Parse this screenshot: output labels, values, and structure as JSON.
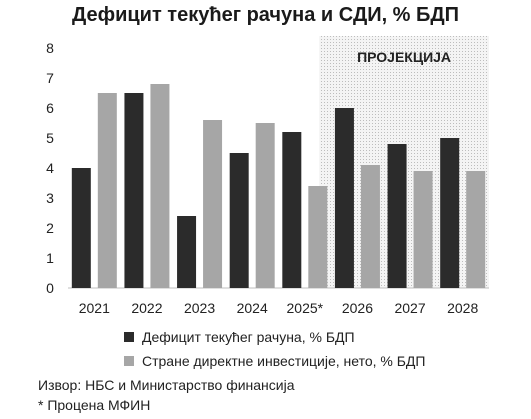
{
  "chart_data": {
    "type": "bar",
    "title": "Дефицит текућег рачуна и СДИ, % БДП",
    "categories": [
      "2021",
      "2022",
      "2023",
      "2024",
      "2025*",
      "2026",
      "2027",
      "2028"
    ],
    "series": [
      {
        "name": "Дефицит текућег рачуна, % БДП",
        "color": "#2b2b2b",
        "values": [
          4.0,
          6.5,
          2.4,
          4.5,
          5.2,
          6.0,
          4.8,
          5.0
        ]
      },
      {
        "name": "Стране директне инвестиције, нето, % БДП",
        "color": "#a6a6a6",
        "values": [
          6.5,
          6.8,
          5.6,
          5.5,
          3.4,
          4.1,
          3.9,
          3.9
        ]
      }
    ],
    "y_ticks": [
      "0",
      "1",
      "2",
      "3",
      "4",
      "5",
      "6",
      "7",
      "8"
    ],
    "ylim": [
      0,
      8
    ],
    "projection": {
      "label": "ПРОЈЕКЦИЈА",
      "from_category": "2026"
    },
    "grid": false,
    "legend_position": "bottom"
  },
  "notes": {
    "source": "Извор: НБС и Министарство финансија",
    "footnote": "* Процена МФИН"
  }
}
